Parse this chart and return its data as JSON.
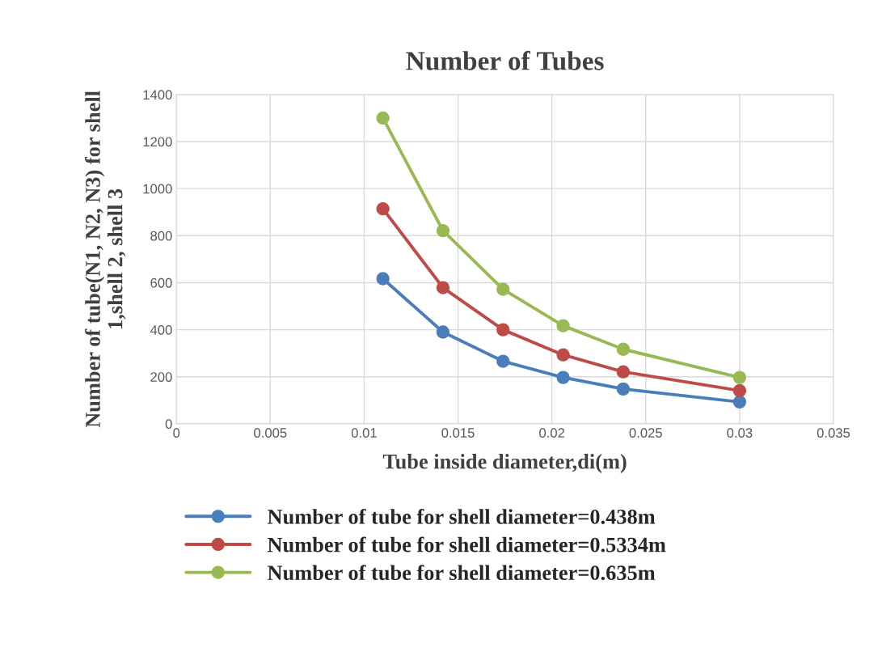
{
  "chart_data": {
    "type": "line",
    "title": "Number of Tubes",
    "xlabel": "Tube inside diameter,di(m)",
    "ylabel": "Number of tube(N1, N2, N3) for shell\n1,shell 2, shell 3",
    "x": [
      0.011,
      0.0142,
      0.0174,
      0.0206,
      0.0238,
      0.03
    ],
    "series": [
      {
        "name": "Number of tube for shell diameter=0.438m",
        "color": "#4a7ebb",
        "values": [
          617,
          390,
          266,
          197,
          148,
          93
        ]
      },
      {
        "name": "Number of tube for shell diameter=0.5334m",
        "color": "#be4b48",
        "values": [
          914,
          579,
          400,
          293,
          221,
          141
        ]
      },
      {
        "name": "Number of tube for shell diameter=0.635m",
        "color": "#98b954",
        "values": [
          1300,
          821,
          572,
          417,
          317,
          197
        ]
      }
    ],
    "xlim": [
      0,
      0.035
    ],
    "xticks": [
      0,
      0.005,
      0.01,
      0.015,
      0.02,
      0.025,
      0.03,
      0.035
    ],
    "ylim": [
      0,
      1400
    ],
    "yticks": [
      0,
      200,
      400,
      600,
      800,
      1000,
      1200,
      1400
    ],
    "grid": true,
    "legend": "bottom",
    "marker": "circle",
    "line_style": "solid"
  }
}
